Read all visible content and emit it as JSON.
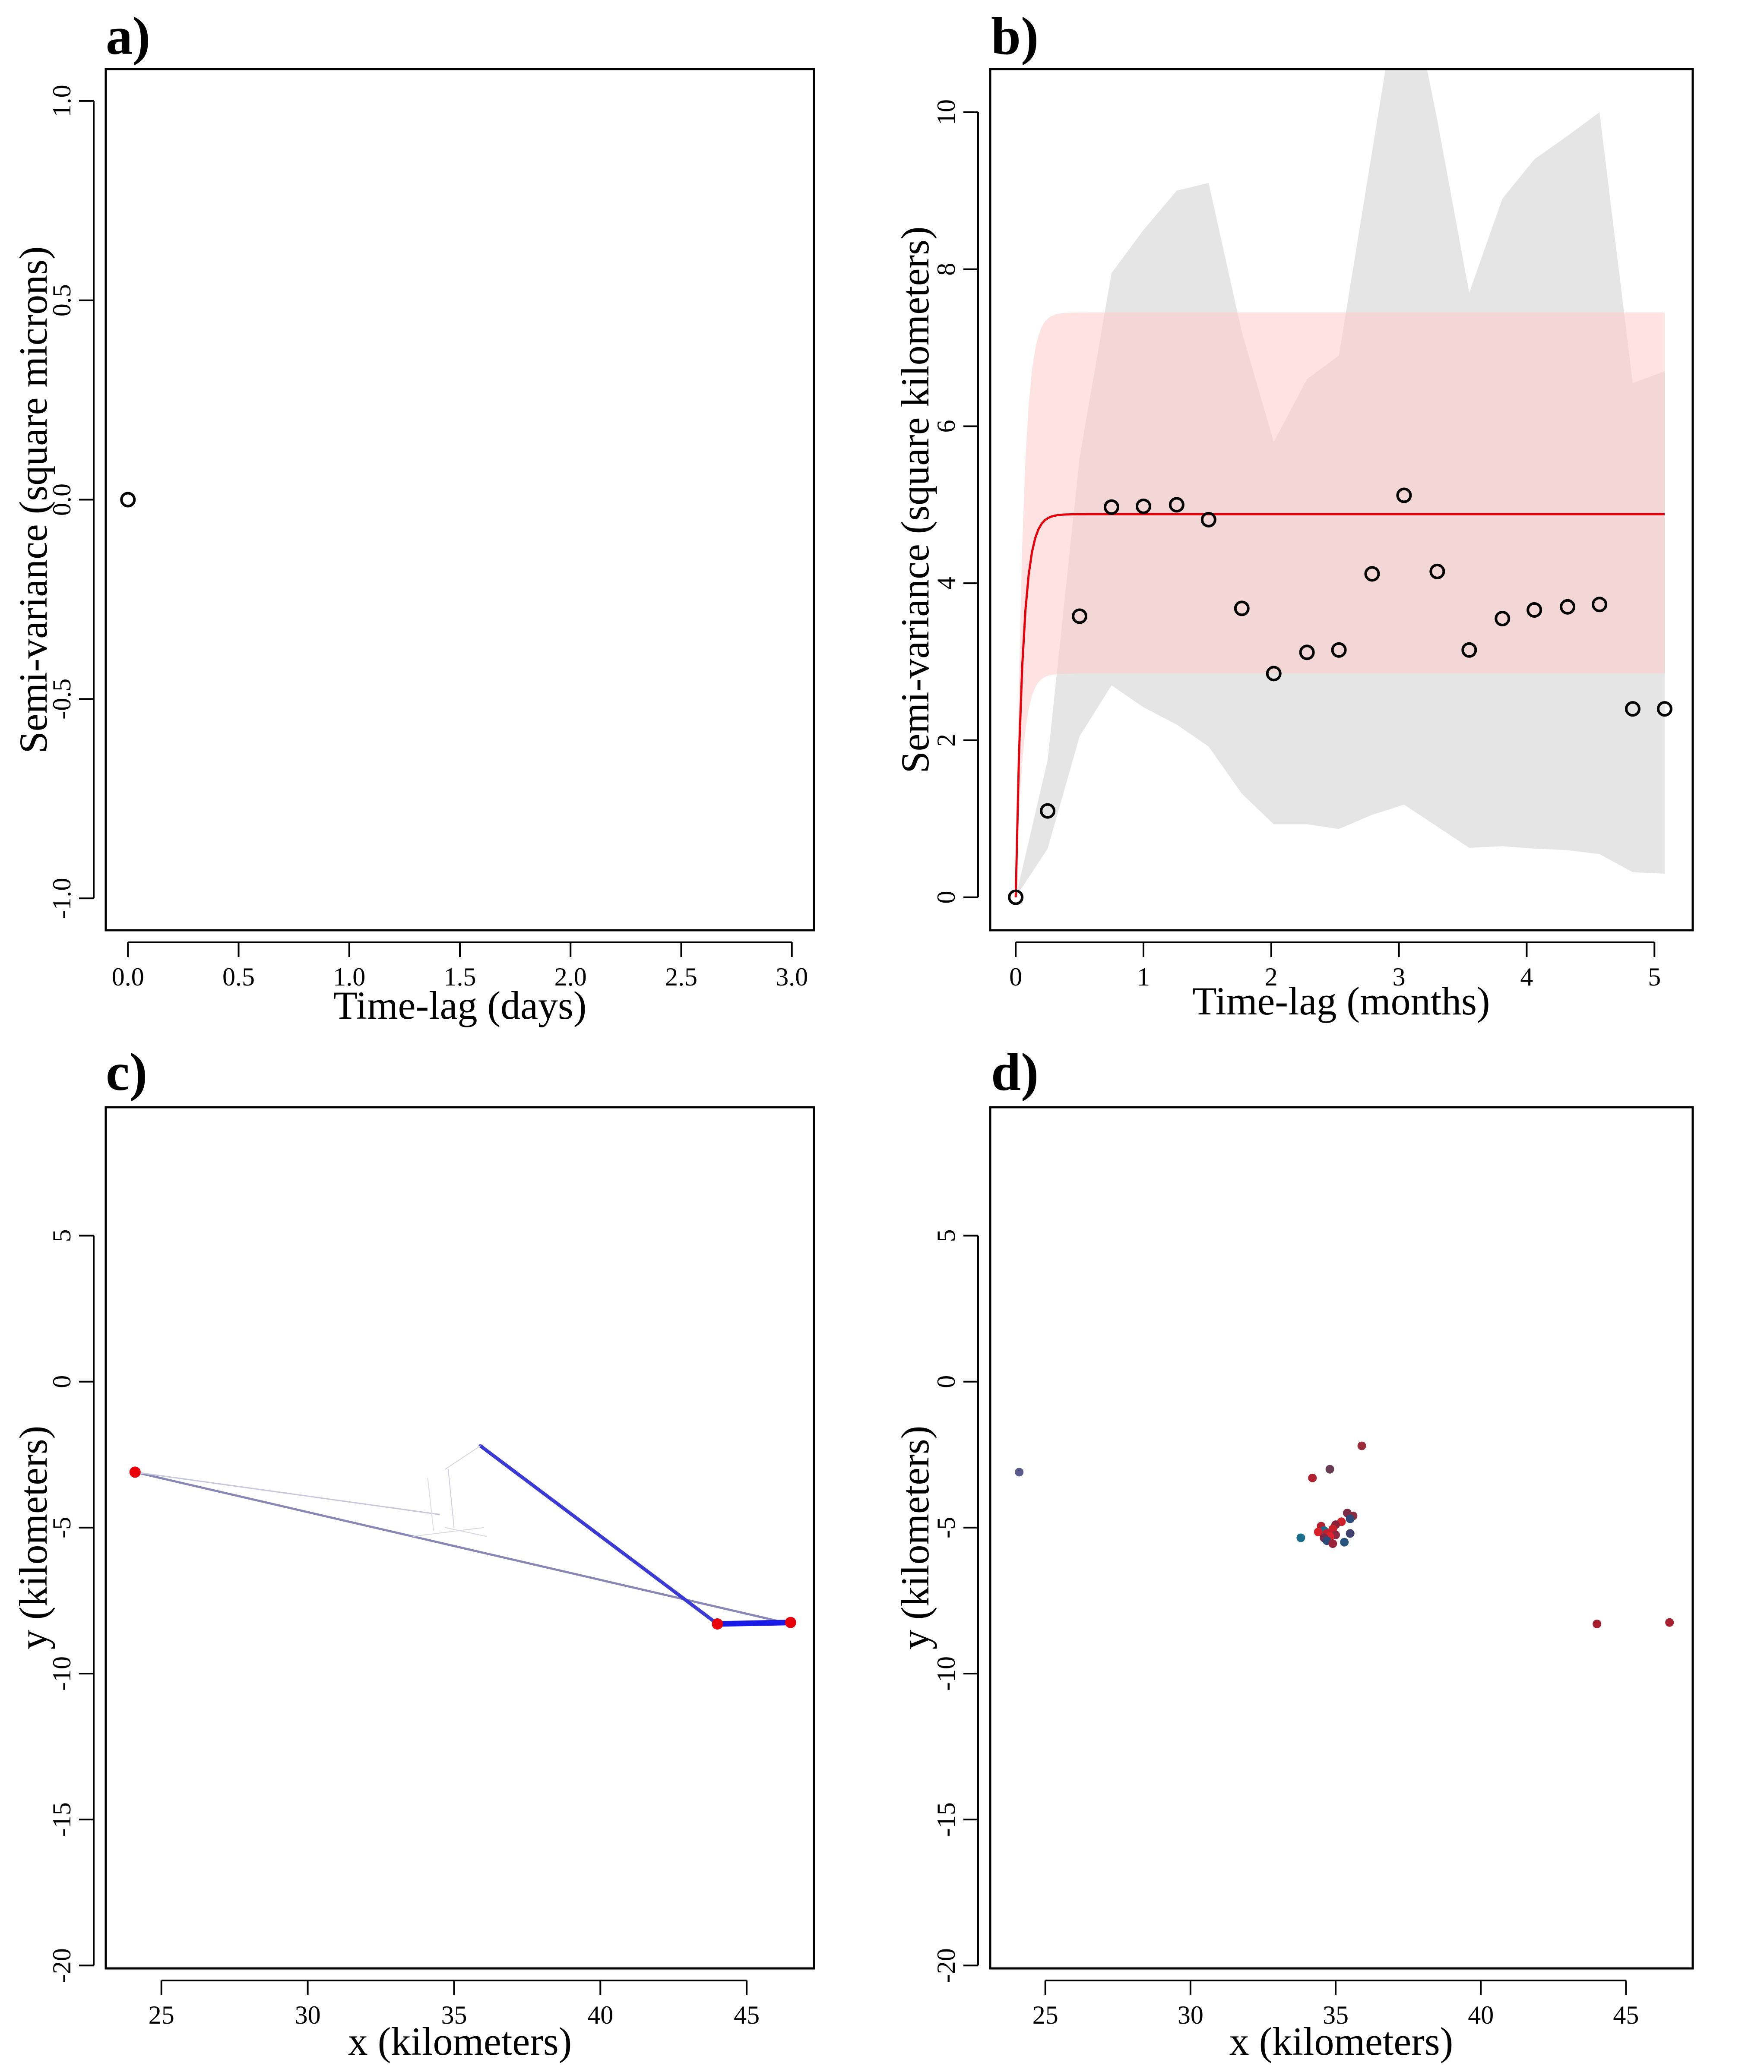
{
  "chart_data": [
    {
      "id": "a",
      "type": "scatter",
      "panel_label": "a)",
      "title": "",
      "xlabel": "Time-lag (days)",
      "ylabel": "Semi-variance (square microns)",
      "xlim": [
        -0.1,
        3.1
      ],
      "ylim": [
        -1.08,
        1.08
      ],
      "xticks": [
        0.0,
        0.5,
        1.0,
        1.5,
        2.0,
        2.5,
        3.0
      ],
      "xtick_labels": [
        "0.0",
        "0.5",
        "1.0",
        "1.5",
        "2.0",
        "2.5",
        "3.0"
      ],
      "yticks": [
        -1.0,
        -0.5,
        0.0,
        0.5,
        1.0
      ],
      "ytick_labels": [
        "-1.0",
        "-0.5",
        "0.0",
        "0.5",
        "1.0"
      ],
      "grid": false,
      "series": [
        {
          "marker": "open-circle",
          "color": "#000000",
          "x": [
            0.0
          ],
          "y": [
            0.0
          ]
        }
      ]
    },
    {
      "id": "b",
      "type": "scatter",
      "panel_label": "b)",
      "title": "",
      "xlabel": "Time-lag (months)",
      "ylabel": "Semi-variance (square kilometers)",
      "xlim": [
        -0.2,
        5.3
      ],
      "ylim": [
        -0.42,
        10.55
      ],
      "xticks": [
        0,
        1,
        2,
        3,
        4,
        5
      ],
      "xtick_labels": [
        "0",
        "1",
        "2",
        "3",
        "4",
        "5"
      ],
      "yticks": [
        0,
        2,
        4,
        6,
        8,
        10
      ],
      "ytick_labels": [
        "0",
        "2",
        "4",
        "6",
        "8",
        "10"
      ],
      "grid": false,
      "empirical": {
        "x": [
          0.0,
          0.25,
          0.5,
          0.75,
          1.0,
          1.26,
          1.51,
          1.77,
          2.02,
          2.28,
          2.53,
          2.79,
          3.04,
          3.3,
          3.55,
          3.81,
          4.06,
          4.32,
          4.57,
          4.83,
          5.08
        ],
        "y": [
          0.0,
          1.1,
          3.58,
          4.97,
          4.98,
          5.0,
          4.81,
          3.68,
          2.85,
          3.12,
          3.15,
          4.12,
          5.12,
          4.15,
          3.15,
          3.55,
          3.66,
          3.7,
          3.73,
          2.4,
          2.4
        ]
      },
      "ci_band": {
        "color": "#e5e5e5",
        "x": [
          0.0,
          0.25,
          0.5,
          0.75,
          1.0,
          1.26,
          1.51,
          1.77,
          2.02,
          2.28,
          2.53,
          2.79,
          3.04,
          3.3,
          3.55,
          3.81,
          4.06,
          4.32,
          4.57,
          4.83,
          5.08
        ],
        "upper": [
          0.0,
          1.75,
          5.6,
          7.95,
          8.5,
          9.0,
          9.1,
          7.2,
          5.8,
          6.6,
          6.9,
          9.5,
          12.0,
          9.9,
          7.7,
          8.9,
          9.4,
          9.7,
          10.0,
          6.55,
          6.7
        ],
        "lower": [
          0.0,
          0.62,
          2.05,
          2.7,
          2.42,
          2.2,
          1.92,
          1.32,
          0.93,
          0.93,
          0.87,
          1.05,
          1.18,
          0.9,
          0.63,
          0.65,
          0.62,
          0.6,
          0.55,
          0.32,
          0.3
        ]
      },
      "model": {
        "color": "#e8000b",
        "band_color": "#ffcccc",
        "sill": 4.88,
        "band_upper": 7.45,
        "band_lower": 2.85,
        "tau": 0.055,
        "xmax": 5.08
      }
    },
    {
      "id": "c",
      "type": "line",
      "panel_label": "c)",
      "title": "",
      "xlabel": "x (kilometers)",
      "ylabel": "y (kilometers)",
      "xlim": [
        23.1,
        47.3
      ],
      "ylim": [
        -20.1,
        9.4
      ],
      "xticks": [
        25,
        30,
        35,
        40,
        45
      ],
      "xtick_labels": [
        "25",
        "30",
        "35",
        "40",
        "45"
      ],
      "yticks": [
        -20,
        -15,
        -10,
        -5,
        0,
        5
      ],
      "ytick_labels": [
        "-20",
        "-15",
        "-10",
        "-5",
        "0",
        "5"
      ],
      "grid": false,
      "track_segments": [
        {
          "x": [
            24.1,
            46.5
          ],
          "y": [
            -3.1,
            -8.3
          ],
          "color": "#8a87b7",
          "width": 5
        },
        {
          "x": [
            35.9,
            44.0
          ],
          "y": [
            -2.2,
            -8.3
          ],
          "color": "#3a3ad6",
          "width": 8
        },
        {
          "x": [
            44.0,
            46.5
          ],
          "y": [
            -8.3,
            -8.25
          ],
          "color": "#1a1ae6",
          "width": 13
        },
        {
          "x": [
            24.1,
            34.5
          ],
          "y": [
            -3.1,
            -4.55
          ],
          "color": "#c8c8dc",
          "width": 3
        },
        {
          "x": [
            34.7,
            35.9
          ],
          "y": [
            -3.0,
            -2.2
          ],
          "color": "#d4d4e0",
          "width": 2
        },
        {
          "x": [
            34.1,
            34.3
          ],
          "y": [
            -3.3,
            -5.1
          ],
          "color": "#dcdce6",
          "width": 2
        },
        {
          "x": [
            34.8,
            35.0
          ],
          "y": [
            -3.0,
            -5.0
          ],
          "color": "#d0d0dc",
          "width": 2
        },
        {
          "x": [
            33.6,
            36.0
          ],
          "y": [
            -5.3,
            -5.0
          ],
          "color": "#d8d8e2",
          "width": 2
        },
        {
          "x": [
            34.7,
            36.1
          ],
          "y": [
            -5.0,
            -5.3
          ],
          "color": "#d6d6e0",
          "width": 2
        }
      ],
      "highlight_points": {
        "color": "#e8000b",
        "x": [
          24.1,
          44.0,
          46.5
        ],
        "y": [
          -3.1,
          -8.3,
          -8.25
        ]
      }
    },
    {
      "id": "d",
      "type": "scatter",
      "panel_label": "d)",
      "title": "",
      "xlabel": "x (kilometers)",
      "ylabel": "y (kilometers)",
      "xlim": [
        23.1,
        47.3
      ],
      "ylim": [
        -20.1,
        9.4
      ],
      "xticks": [
        25,
        30,
        35,
        40,
        45
      ],
      "xtick_labels": [
        "25",
        "30",
        "35",
        "40",
        "45"
      ],
      "yticks": [
        -20,
        -15,
        -10,
        -5,
        0,
        5
      ],
      "ytick_labels": [
        "-20",
        "-15",
        "-10",
        "-5",
        "0",
        "5"
      ],
      "grid": false,
      "points": [
        {
          "x": 24.1,
          "y": -3.1,
          "color": "#5a5a8c"
        },
        {
          "x": 35.9,
          "y": -2.2,
          "color": "#9b2d3c"
        },
        {
          "x": 34.8,
          "y": -3.0,
          "color": "#6b3a55"
        },
        {
          "x": 34.2,
          "y": -3.3,
          "color": "#b0202e"
        },
        {
          "x": 35.4,
          "y": -4.5,
          "color": "#7a2b45"
        },
        {
          "x": 35.6,
          "y": -4.6,
          "color": "#8c2a40"
        },
        {
          "x": 35.5,
          "y": -4.7,
          "color": "#2d4a78"
        },
        {
          "x": 35.2,
          "y": -4.8,
          "color": "#d0202a"
        },
        {
          "x": 35.0,
          "y": -4.9,
          "color": "#8a2035"
        },
        {
          "x": 34.5,
          "y": -4.95,
          "color": "#b5202e"
        },
        {
          "x": 34.9,
          "y": -5.05,
          "color": "#c81f2a"
        },
        {
          "x": 34.6,
          "y": -5.1,
          "color": "#1f6a8a"
        },
        {
          "x": 34.4,
          "y": -5.15,
          "color": "#d8202a"
        },
        {
          "x": 34.7,
          "y": -5.2,
          "color": "#c01f2b"
        },
        {
          "x": 35.0,
          "y": -5.25,
          "color": "#8c2a45"
        },
        {
          "x": 35.5,
          "y": -5.2,
          "color": "#40406e"
        },
        {
          "x": 34.8,
          "y": -5.3,
          "color": "#e0202a"
        },
        {
          "x": 34.6,
          "y": -5.35,
          "color": "#7a2848"
        },
        {
          "x": 33.8,
          "y": -5.35,
          "color": "#1a6e8c"
        },
        {
          "x": 34.7,
          "y": -5.45,
          "color": "#2a4a7a"
        },
        {
          "x": 34.9,
          "y": -5.55,
          "color": "#9a2238"
        },
        {
          "x": 35.3,
          "y": -5.5,
          "color": "#2a5580"
        },
        {
          "x": 44.0,
          "y": -8.3,
          "color": "#a8202f"
        },
        {
          "x": 46.5,
          "y": -8.25,
          "color": "#a8202f"
        }
      ]
    }
  ]
}
